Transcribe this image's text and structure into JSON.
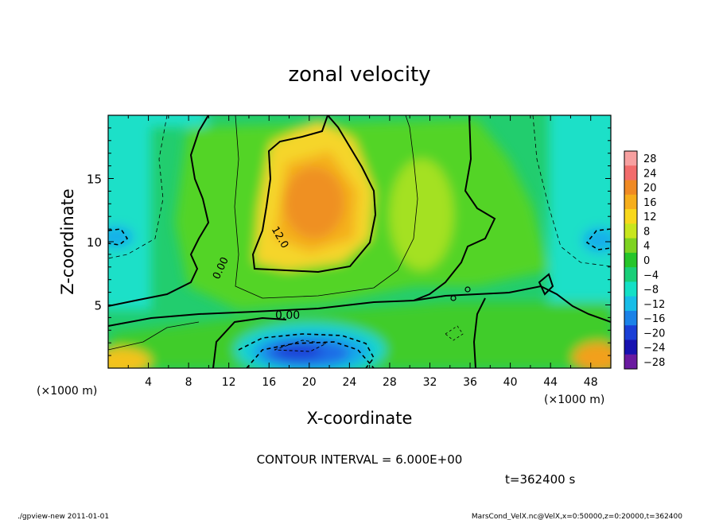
{
  "chart_data": {
    "type": "heatmap",
    "title": "zonal velocity",
    "xlabel": "X-coordinate",
    "ylabel": "Z-coordinate",
    "x_unit_left": "(×1000 m)",
    "x_unit_right": "(×1000 m)",
    "xlim": [
      0,
      50
    ],
    "ylim": [
      0,
      20
    ],
    "x_ticks": [
      "4",
      "8",
      "12",
      "16",
      "20",
      "24",
      "28",
      "32",
      "36",
      "40",
      "44",
      "48"
    ],
    "y_ticks": [
      "5",
      "10",
      "15"
    ],
    "colorbar": {
      "levels": [
        "28",
        "24",
        "20",
        "16",
        "12",
        "8",
        "4",
        "0",
        "−4",
        "−8",
        "−12",
        "−16",
        "−20",
        "−24",
        "−28"
      ],
      "colors": [
        "#f7a0a0",
        "#f26c6c",
        "#f08a24",
        "#f6ae1c",
        "#f8d81c",
        "#c8e61e",
        "#7ed321",
        "#26c52a",
        "#19cf78",
        "#14e0c6",
        "#18bde8",
        "#1b82e8",
        "#1a3fd6",
        "#1712b0",
        "#6a1aa0"
      ]
    },
    "contour_labels": [
      "12.0",
      "0.00",
      "0.00"
    ],
    "features": [
      {
        "label": "positive max",
        "x": 22,
        "z": 13,
        "value": 16
      },
      {
        "label": "negative min",
        "x": 21,
        "z": 1.5,
        "value": -20
      },
      {
        "label": "negative min",
        "x": 1,
        "z": 10,
        "value": -10
      },
      {
        "label": "negative min",
        "x": 49,
        "z": 10,
        "value": -10
      },
      {
        "label": "positive max",
        "x": 49,
        "z": 1,
        "value": 16
      }
    ],
    "annotation": "CONTOUR INTERVAL = 6.000E+00",
    "time": "t=362400 s"
  },
  "footer": {
    "left": "./gpview-new  2011-01-01",
    "right": "MarsCond_VelX.nc@VelX,x=0:50000,z=0:20000,t=362400"
  }
}
